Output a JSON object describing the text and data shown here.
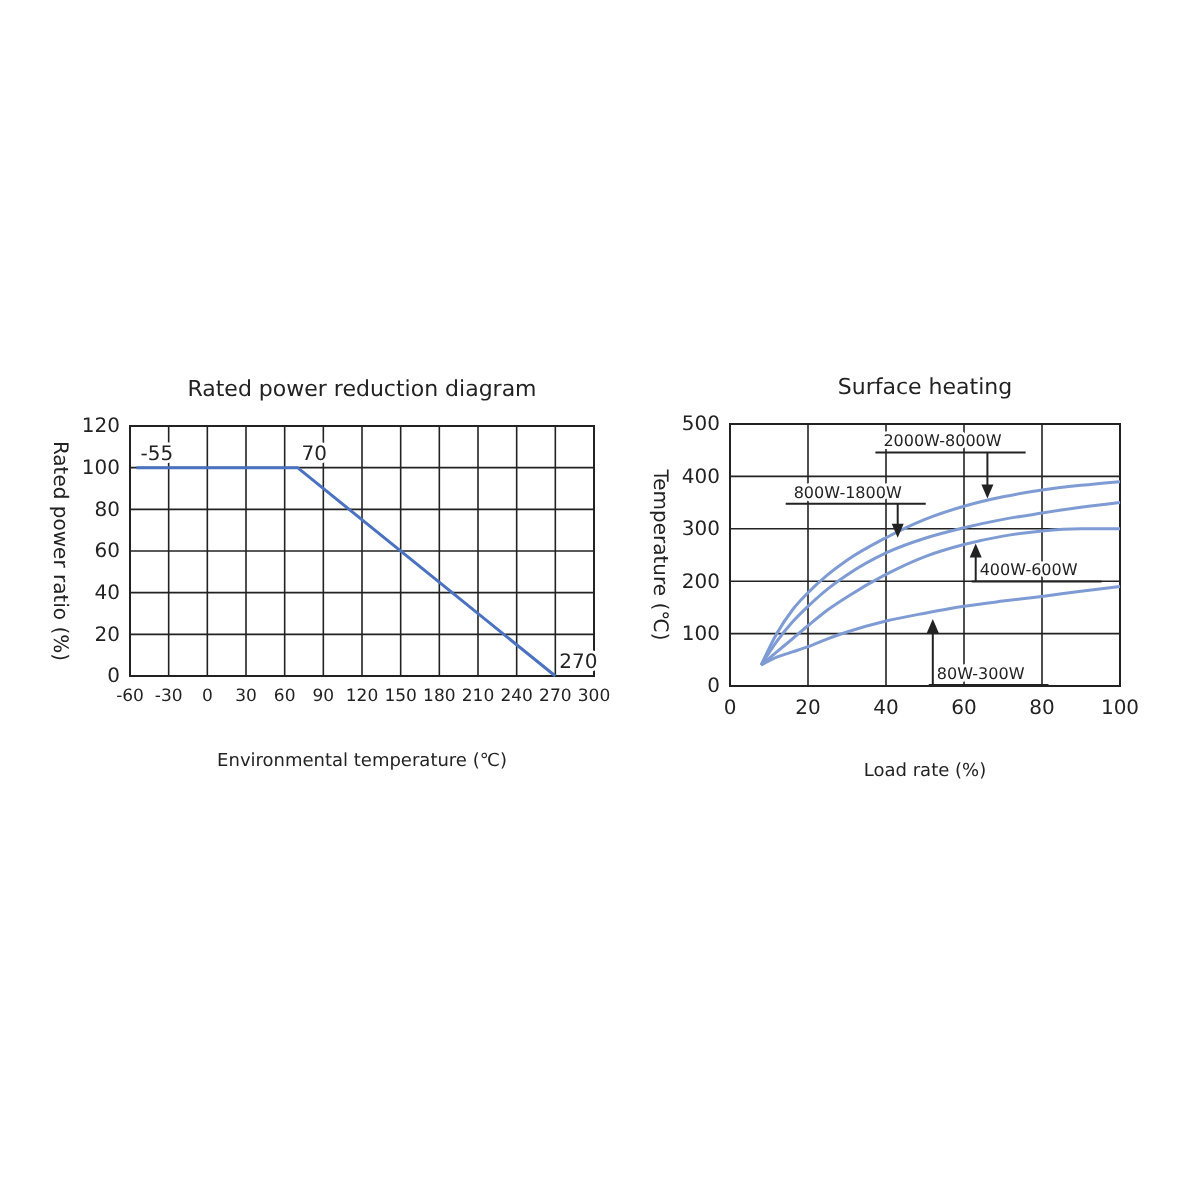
{
  "chart_data": [
    {
      "type": "line",
      "title": "Rated power reduction diagram",
      "xlabel": "Environmental temperature (℃)",
      "ylabel": "Rated power ratio (%)",
      "x": [
        -55,
        70,
        270
      ],
      "series": [
        {
          "color": "#4a72c0",
          "values": [
            100,
            100,
            0
          ]
        }
      ],
      "xlim": [
        -60,
        300
      ],
      "xticks": [
        -60,
        -30,
        0,
        30,
        60,
        90,
        120,
        150,
        180,
        210,
        240,
        270,
        300
      ],
      "ylim": [
        0,
        120
      ],
      "yticks": [
        0,
        20,
        40,
        60,
        80,
        100,
        120
      ],
      "grid": true,
      "marker": "none",
      "line_style": "solid",
      "annotations": [
        {
          "text": "-55",
          "x": -55,
          "y": 100
        },
        {
          "text": "70",
          "x": 70,
          "y": 100
        },
        {
          "text": "270",
          "x": 270,
          "y": 0
        }
      ]
    },
    {
      "type": "line",
      "title": "Surface heating",
      "xlabel": "Load rate (%)",
      "ylabel": "Temperature (℃)",
      "x": [
        8,
        12,
        16,
        20,
        25,
        30,
        40,
        50,
        60,
        70,
        80,
        90,
        100
      ],
      "series": [
        {
          "color": "#7f9bd3",
          "values": [
            40,
            100,
            145,
            178,
            212,
            240,
            283,
            318,
            343,
            361,
            374,
            383,
            390
          ]
        },
        {
          "color": "#7f9bd3",
          "values": [
            40,
            85,
            122,
            152,
            185,
            212,
            254,
            282,
            302,
            318,
            330,
            341,
            350
          ]
        },
        {
          "color": "#7f9bd3",
          "values": [
            40,
            65,
            90,
            115,
            145,
            170,
            213,
            247,
            270,
            286,
            296,
            300,
            300
          ]
        },
        {
          "color": "#7f9bd3",
          "values": [
            40,
            55,
            65,
            75,
            90,
            103,
            124,
            139,
            152,
            162,
            171,
            181,
            190
          ]
        }
      ],
      "xlim": [
        0,
        100
      ],
      "xticks": [
        0,
        20,
        40,
        60,
        80,
        100
      ],
      "ylim": [
        0,
        500
      ],
      "yticks": [
        0,
        100,
        200,
        300,
        400,
        500
      ],
      "grid": true,
      "marker": "none",
      "line_style": "solid",
      "annotations": [
        {
          "text": "2000W-8000W",
          "x": 66,
          "y": 358
        },
        {
          "text": "800W-1800W",
          "x": 43,
          "y": 283
        },
        {
          "text": "400W-600W",
          "x": 63,
          "y": 272
        },
        {
          "text": "80W-300W",
          "x": 52,
          "y": 128
        }
      ]
    }
  ]
}
